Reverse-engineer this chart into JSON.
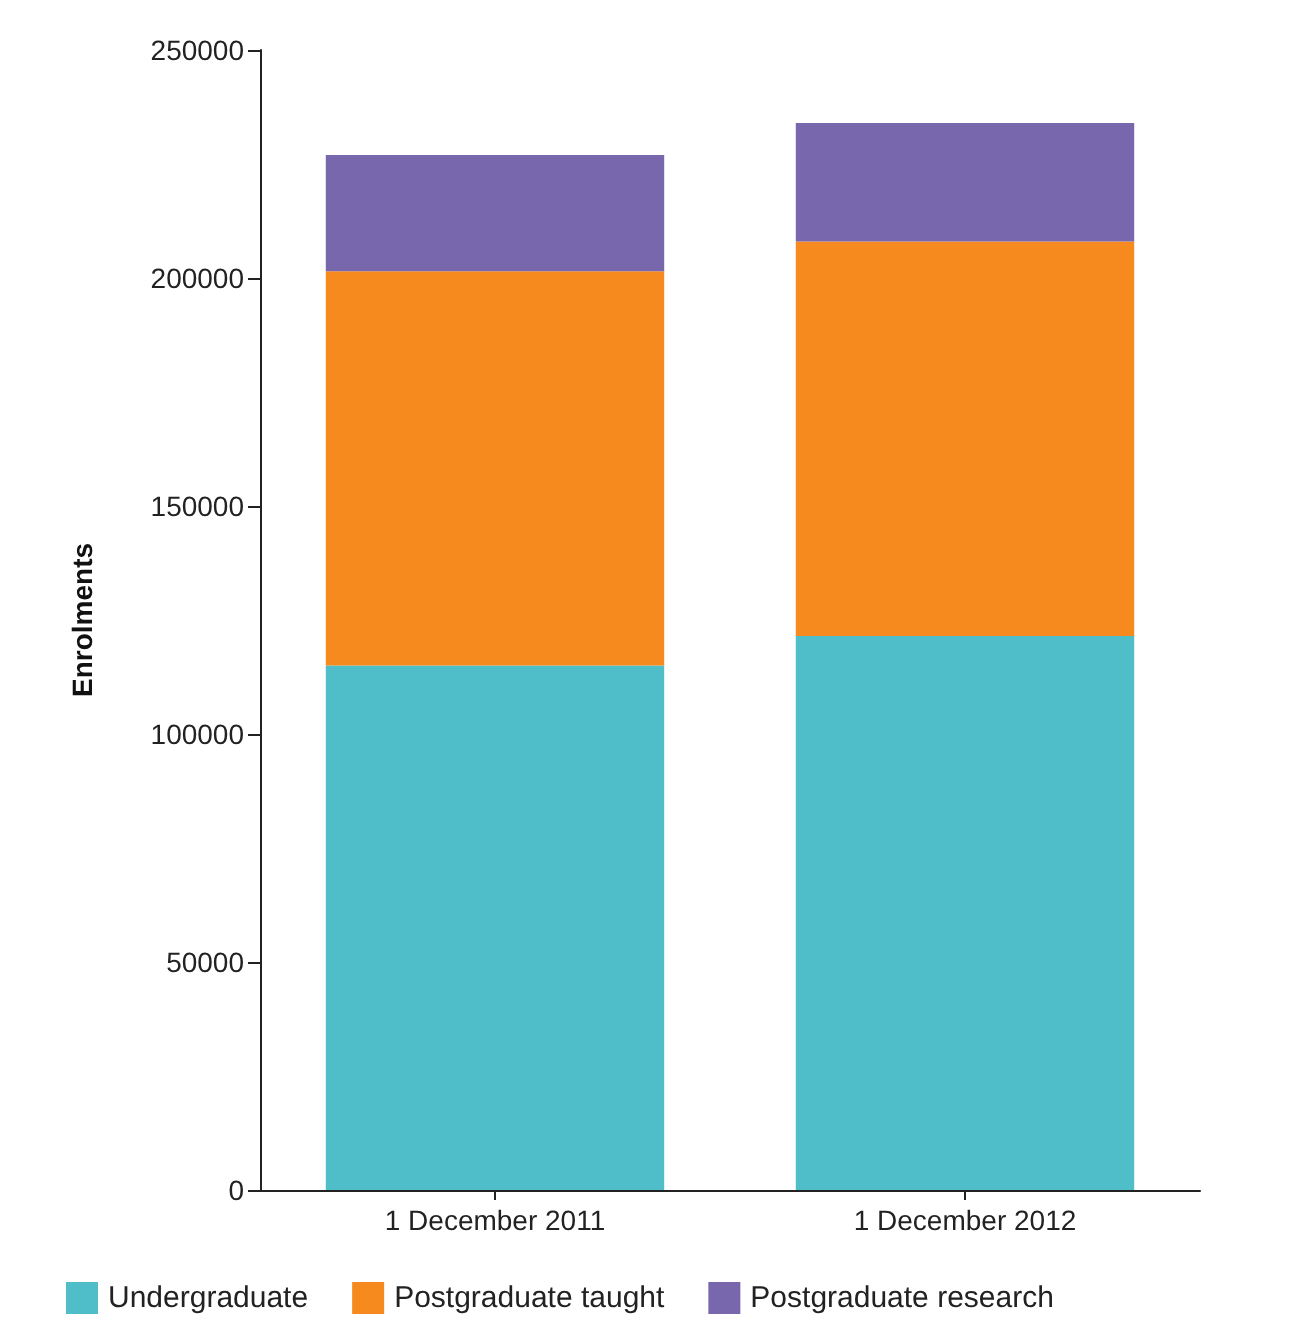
{
  "chart_data": {
    "type": "bar",
    "stacked": true,
    "ylabel": "Enrolments",
    "categories": [
      "1 December 2011",
      "1 December 2012"
    ],
    "series": [
      {
        "name": "Undergraduate",
        "color": "#4fbec8",
        "values": [
          115000,
          121500
        ]
      },
      {
        "name": "Postgraduate taught",
        "color": "#f68a1f",
        "values": [
          86500,
          86500
        ]
      },
      {
        "name": "Postgraduate research",
        "color": "#7967ae",
        "values": [
          25500,
          26000
        ]
      }
    ],
    "ylim": [
      0,
      250000
    ],
    "yticks": [
      0,
      50000,
      100000,
      150000,
      200000,
      250000
    ],
    "grid": false,
    "legend": "bottom left"
  }
}
